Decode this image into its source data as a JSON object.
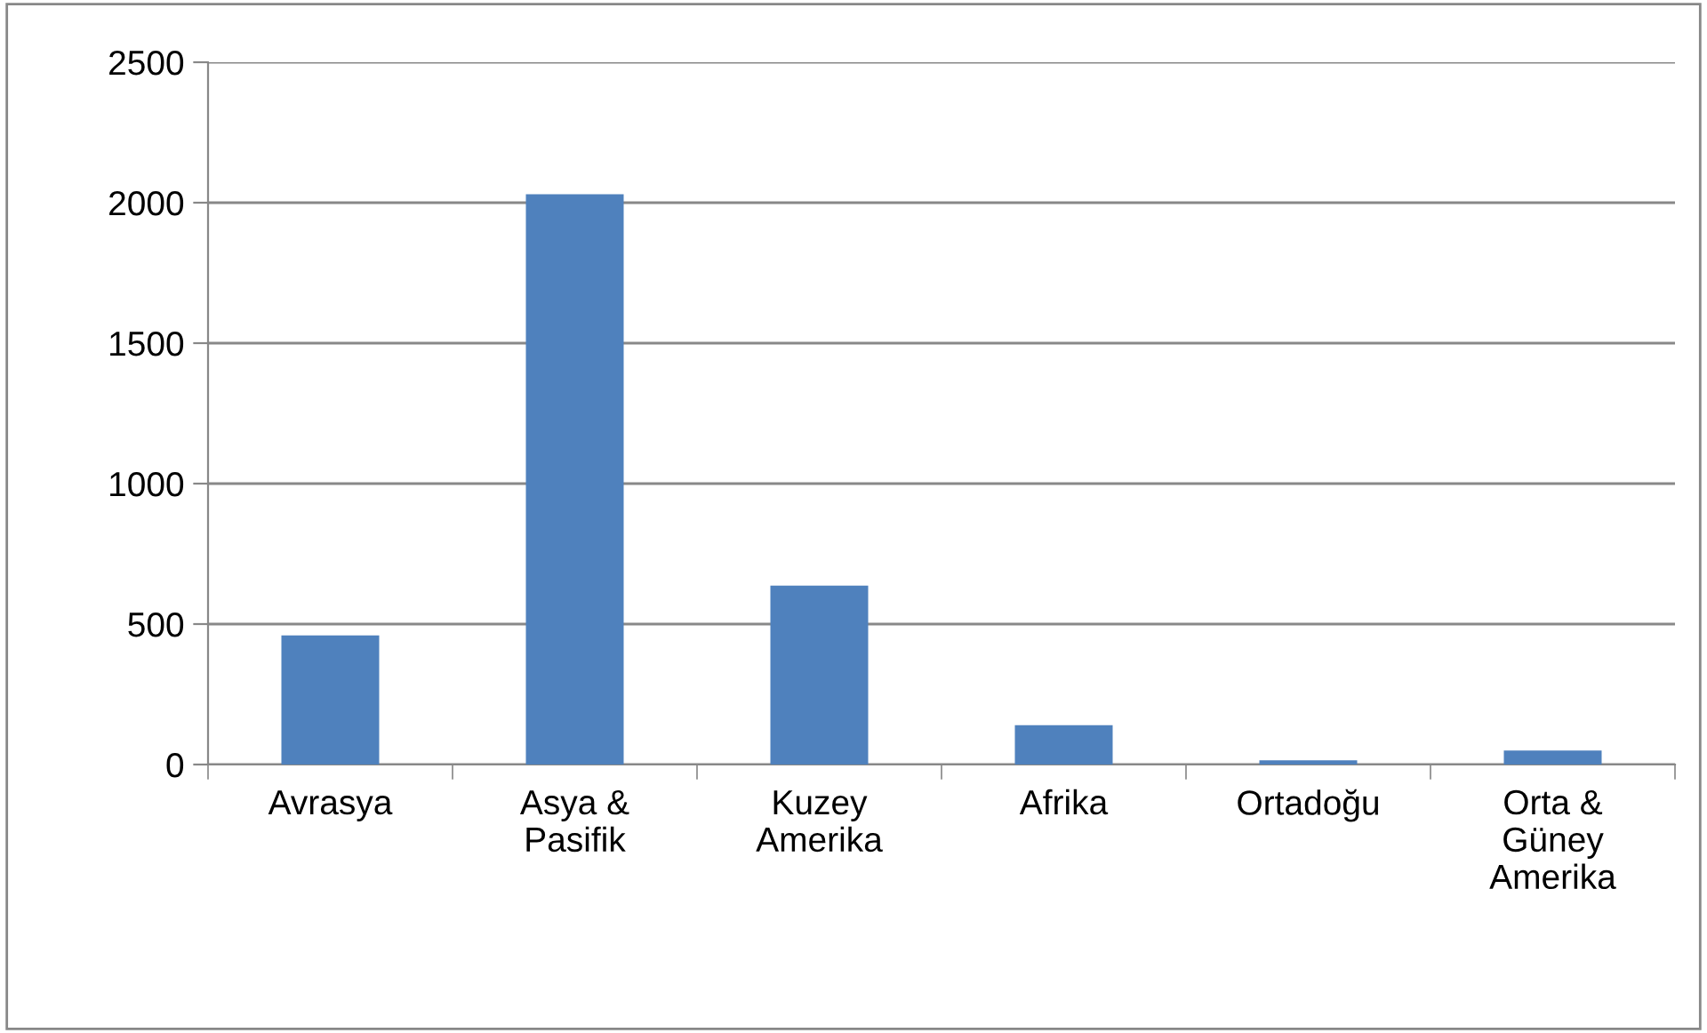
{
  "chart_data": {
    "type": "bar",
    "categories": [
      "Avrasya",
      "Asya &\nPasifik",
      "Kuzey\nAmerika",
      "Afrika",
      "Ortadoğu",
      "Orta &\nGüney\nAmerika"
    ],
    "values": [
      460,
      2030,
      637,
      140,
      15,
      50
    ],
    "color": "#4f81bd",
    "ylim": [
      0,
      2500
    ],
    "yticks": [
      0,
      500,
      1000,
      1500,
      2000,
      2500
    ],
    "grid": "y",
    "legend": false
  }
}
